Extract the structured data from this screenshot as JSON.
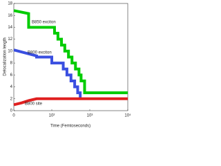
{
  "chart_data": {
    "type": "line",
    "ylabel": "Delocalization length",
    "xlabel": "Time (Femtoseconds)",
    "xscale": "symlog",
    "xlim": [
      0,
      10000
    ],
    "xticks": [
      0,
      {
        "value": 100,
        "label": "10²"
      },
      {
        "value": 1000,
        "label": "10³"
      },
      {
        "value": 10000,
        "label": "10⁴"
      }
    ],
    "ylim": [
      0,
      18
    ],
    "yticks": [
      0,
      2,
      4,
      6,
      8,
      10,
      12,
      14,
      16,
      18
    ],
    "series": [
      {
        "name": "B850 exciton",
        "color": "#00cc00",
        "x": [
          0,
          39,
          39,
          118,
          118,
          145,
          145,
          180,
          180,
          220,
          220,
          275,
          275,
          340,
          340,
          420,
          420,
          520,
          520,
          590,
          590,
          730,
          730,
          10000
        ],
        "values": [
          16.8,
          16.3,
          14,
          14,
          13,
          13,
          12,
          12,
          11,
          11,
          10,
          10,
          9,
          9,
          8,
          8,
          7,
          7,
          6,
          6,
          5,
          5,
          3,
          3
        ]
      },
      {
        "name": "B800 exciton",
        "color": "#3a4fe0",
        "x": [
          0,
          60,
          60,
          100,
          100,
          200,
          200,
          250,
          250,
          320,
          320,
          400,
          400,
          480,
          480,
          560,
          560
        ],
        "values": [
          10.2,
          9.2,
          9,
          9,
          8,
          8,
          7,
          7,
          6,
          6,
          5,
          5,
          4,
          4,
          3,
          3,
          2
        ]
      },
      {
        "name": "B800 site",
        "color": "#e02020",
        "x": [
          0,
          20,
          40,
          60,
          10000
        ],
        "values": [
          1,
          1.3,
          1.7,
          2,
          2
        ]
      }
    ]
  }
}
